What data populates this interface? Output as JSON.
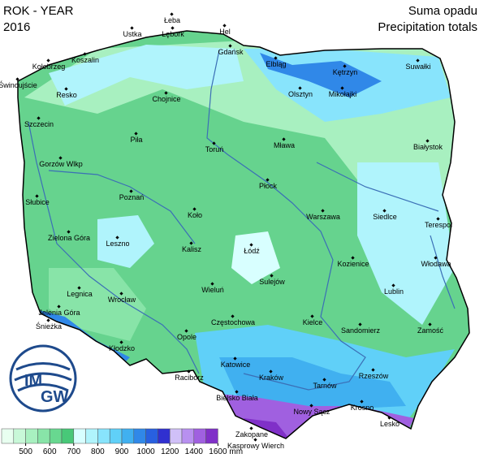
{
  "header": {
    "left": [
      "ROK - YEAR",
      "2016"
    ],
    "right": [
      "Suma opadu",
      "Precipitation totals"
    ]
  },
  "logo": [
    "IM",
    "GW"
  ],
  "cities": [
    "Łeba",
    "Lębork",
    "Hel",
    "Ustka",
    "Koszalin",
    "Kołobrzeg",
    "Gdańsk",
    "Elbląg",
    "Kętrzyn",
    "Suwałki",
    "Świnoujście",
    "Resko",
    "Chojnice",
    "Olsztyn",
    "Mikołajki",
    "Szczecin",
    "Piła",
    "Toruń",
    "Mława",
    "Białystok",
    "Gorzów Wlkp",
    "Płock",
    "Słubice",
    "Poznań",
    "Siedlce",
    "Terespol",
    "Koło",
    "Warszawa",
    "Zielona Góra",
    "Leszno",
    "Kalisz",
    "Łódź",
    "Kozienice",
    "Włodawa",
    "Sulejów",
    "Legnica",
    "Wrocław",
    "Wieluń",
    "Lublin",
    "Jelenia Góra",
    "Śnieżka",
    "Częstochowa",
    "Kielce",
    "Sandomierz",
    "Zamość",
    "Opole",
    "Kłodzko",
    "Katowice",
    "Kraków",
    "Tarnów",
    "Rzeszów",
    "Racibórz",
    "Bielsko Biała",
    "Nowy Sącz",
    "Krosno",
    "Lesko",
    "Zakopane",
    "Kasprowy Wierch"
  ],
  "legend": {
    "colors": [
      "#e8fff0",
      "#c8f8d8",
      "#a8f0c0",
      "#88e4a8",
      "#68d890",
      "#48c878",
      "#d8ffff",
      "#b0f4fc",
      "#88e4fc",
      "#60d0f8",
      "#40b0f0",
      "#3088e8",
      "#2860e0",
      "#3030d0",
      "#d0c0f8",
      "#b890f0",
      "#a060e0",
      "#8030c8"
    ],
    "ticks": [
      500,
      600,
      700,
      800,
      900,
      1000,
      1200,
      1400,
      1600
    ],
    "unit": "mm"
  }
}
